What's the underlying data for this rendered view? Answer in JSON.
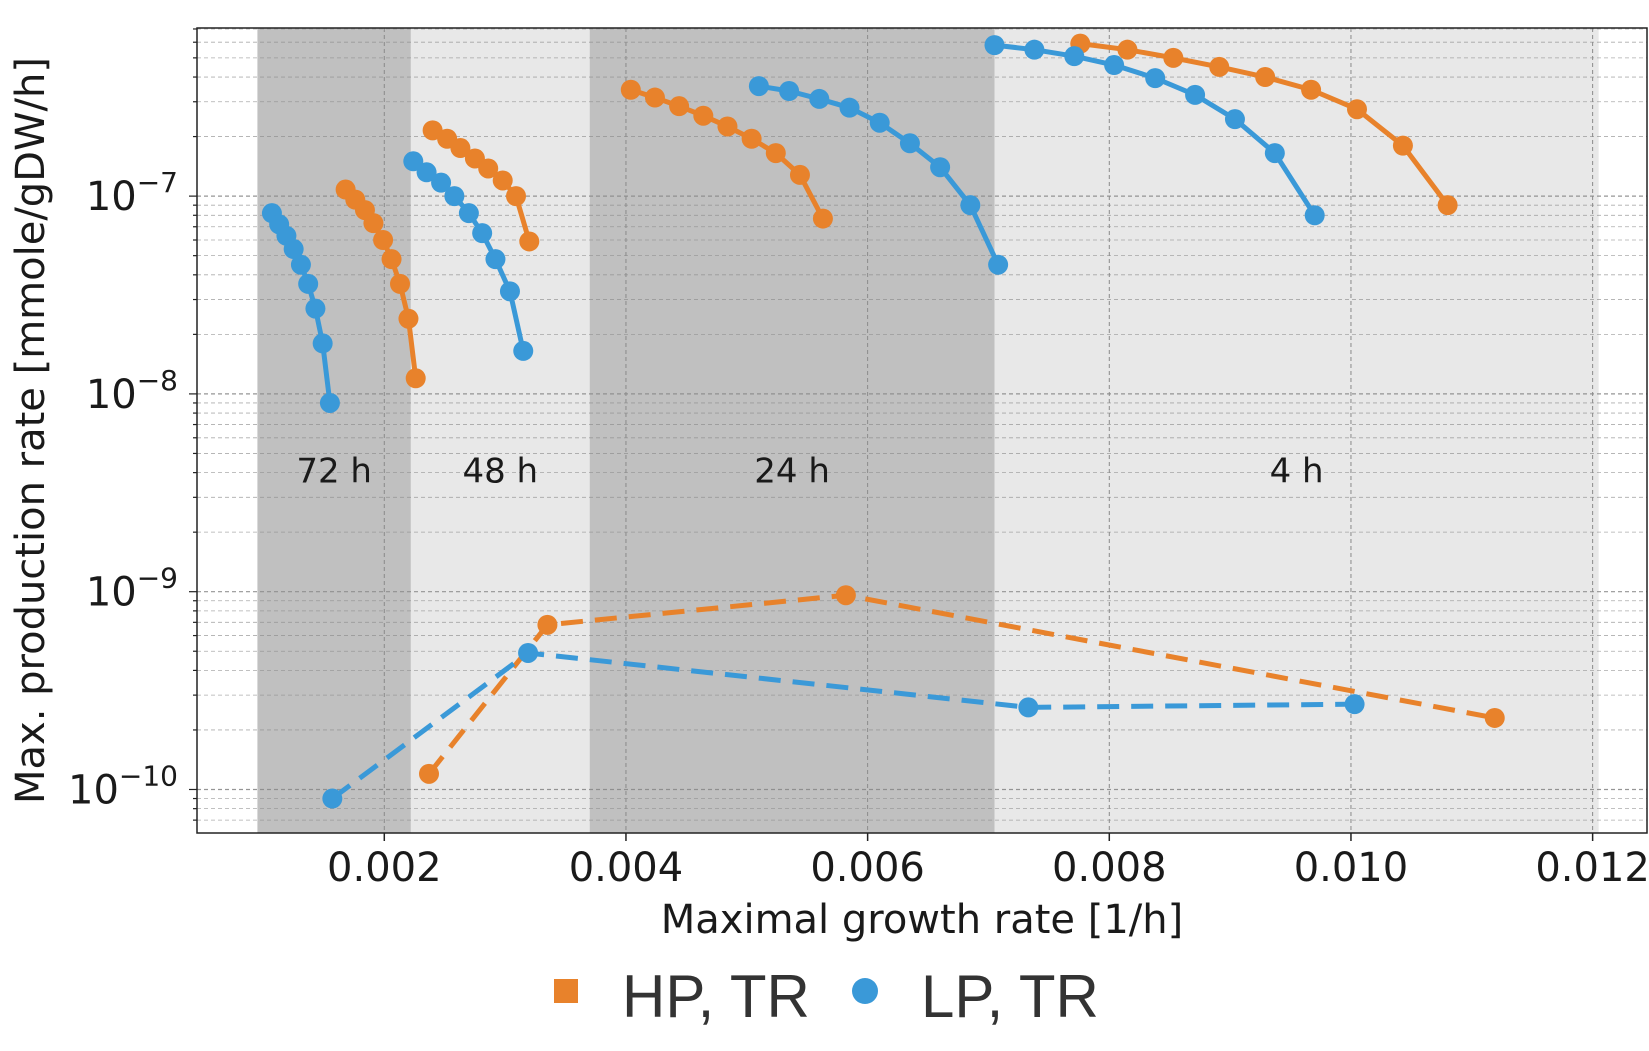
{
  "chart_data": {
    "type": "line",
    "title": "",
    "xlabel": "Maximal growth rate [1/h]",
    "ylabel": "Max. production rate [mmole/gDW/h]",
    "xlim": [
      0.00045,
      0.01245
    ],
    "ylim_log10": [
      -10.22,
      -6.15
    ],
    "yscale": "log",
    "grid": true,
    "x_ticks": [
      {
        "value": 0.002,
        "label": "0.002"
      },
      {
        "value": 0.004,
        "label": "0.004"
      },
      {
        "value": 0.006,
        "label": "0.006"
      },
      {
        "value": 0.008,
        "label": "0.008"
      },
      {
        "value": 0.01,
        "label": "0.010"
      },
      {
        "value": 0.012,
        "label": "0.012"
      }
    ],
    "y_ticks": [
      {
        "exp": -7,
        "base": "10",
        "sup": "−7"
      },
      {
        "exp": -8,
        "base": "10",
        "sup": "−8"
      },
      {
        "exp": -9,
        "base": "10",
        "sup": "−9"
      },
      {
        "exp": -10,
        "base": "10",
        "sup": "−10"
      }
    ],
    "periods": [
      {
        "label": "72 h",
        "x_range": [
          0.00095,
          0.00222
        ],
        "shade": "dark"
      },
      {
        "label": "48 h",
        "x_range": [
          0.00222,
          0.0037
        ],
        "shade": "light"
      },
      {
        "label": "24 h",
        "x_range": [
          0.0037,
          0.00705
        ],
        "shade": "dark"
      },
      {
        "label": "4 h",
        "x_range": [
          0.00705,
          0.01205
        ],
        "shade": "light"
      }
    ],
    "series": [
      {
        "name": "HP, TR",
        "color": "#e8822b",
        "curves": [
          {
            "x": [
              0.00168,
              0.00176,
              0.00184,
              0.00191,
              0.00199,
              0.00206,
              0.00213,
              0.0022,
              0.00226
            ],
            "y": [
              1.08e-07,
              9.6e-08,
              8.5e-08,
              7.3e-08,
              6e-08,
              4.8e-08,
              3.6e-08,
              2.4e-08,
              1.2e-08
            ]
          },
          {
            "x": [
              0.0024,
              0.00252,
              0.00263,
              0.00275,
              0.00286,
              0.00298,
              0.00309,
              0.0032
            ],
            "y": [
              2.15e-07,
              1.95e-07,
              1.75e-07,
              1.55e-07,
              1.38e-07,
              1.2e-07,
              1e-07,
              5.9e-08
            ]
          },
          {
            "x": [
              0.00404,
              0.00424,
              0.00444,
              0.00464,
              0.00484,
              0.00504,
              0.00524,
              0.00544,
              0.00563
            ],
            "y": [
              3.45e-07,
              3.15e-07,
              2.85e-07,
              2.55e-07,
              2.25e-07,
              1.95e-07,
              1.65e-07,
              1.28e-07,
              7.7e-08
            ]
          },
          {
            "x": [
              0.00776,
              0.00815,
              0.00853,
              0.00891,
              0.00929,
              0.00967,
              0.01005,
              0.01043,
              0.0108
            ],
            "y": [
              5.9e-07,
              5.5e-07,
              5e-07,
              4.5e-07,
              4e-07,
              3.45e-07,
              2.75e-07,
              1.8e-07,
              9e-08
            ]
          },
          {
            "x": [
              0.00237,
              0.00335,
              0.00582,
              0.01119
            ],
            "y": [
              1.2e-10,
              6.8e-10,
              9.6e-10,
              2.3e-10
            ],
            "dashed": true
          }
        ]
      },
      {
        "name": "LP, TR",
        "color": "#3a99d8",
        "curves": [
          {
            "x": [
              0.00107,
              0.00113,
              0.00119,
              0.00125,
              0.00131,
              0.00137,
              0.00143,
              0.00149,
              0.00155
            ],
            "y": [
              8.2e-08,
              7.2e-08,
              6.3e-08,
              5.4e-08,
              4.5e-08,
              3.6e-08,
              2.7e-08,
              1.8e-08,
              9e-09
            ]
          },
          {
            "x": [
              0.00224,
              0.00235,
              0.00247,
              0.00258,
              0.0027,
              0.00281,
              0.00292,
              0.00304,
              0.00315
            ],
            "y": [
              1.5e-07,
              1.32e-07,
              1.17e-07,
              1e-07,
              8.2e-08,
              6.5e-08,
              4.8e-08,
              3.3e-08,
              1.65e-08
            ]
          },
          {
            "x": [
              0.0051,
              0.00535,
              0.0056,
              0.00585,
              0.0061,
              0.00635,
              0.0066,
              0.00685,
              0.00708
            ],
            "y": [
              3.6e-07,
              3.4e-07,
              3.1e-07,
              2.8e-07,
              2.35e-07,
              1.85e-07,
              1.4e-07,
              9e-08,
              4.5e-08
            ]
          },
          {
            "x": [
              0.00705,
              0.00738,
              0.00771,
              0.00804,
              0.00838,
              0.00871,
              0.00904,
              0.00937,
              0.0097
            ],
            "y": [
              5.8e-07,
              5.5e-07,
              5.1e-07,
              4.6e-07,
              3.95e-07,
              3.25e-07,
              2.45e-07,
              1.65e-07,
              8e-08
            ]
          },
          {
            "x": [
              0.00157,
              0.00319,
              0.00733,
              0.01003
            ],
            "y": [
              9e-11,
              4.9e-10,
              2.6e-10,
              2.7e-10
            ],
            "dashed": true
          }
        ]
      }
    ],
    "legend": {
      "placement": "bottom-center",
      "entries": [
        "HP, TR",
        "LP, TR"
      ]
    }
  }
}
